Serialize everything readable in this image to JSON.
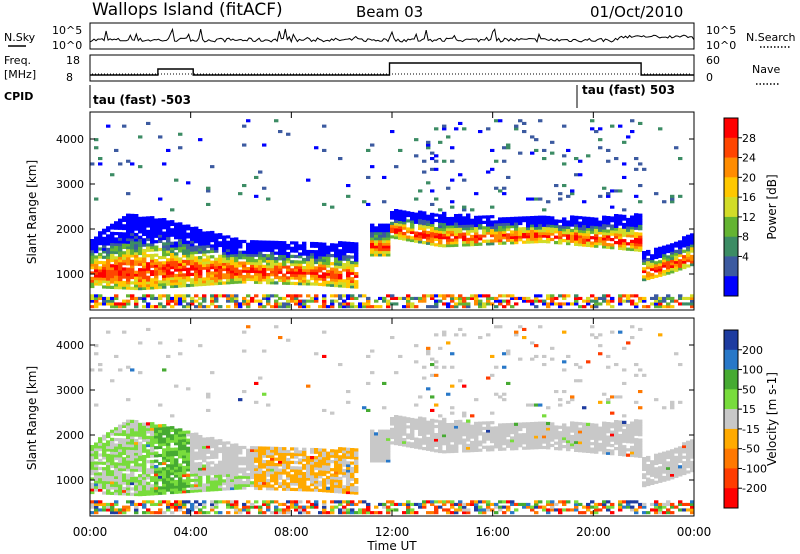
{
  "header": {
    "station": "Wallops Island (fitACF)",
    "beam": "Beam 03",
    "date": "01/Oct/2010"
  },
  "strips": {
    "nsky_label": "N.Sky",
    "nsky_ticks": [
      "10^5",
      "10^0"
    ],
    "nsearch_label": "N.Search",
    "nsearch_ticks": [
      "10^5",
      "10^0"
    ],
    "freq_label": "Freq.",
    "freq_unit": "[MHz]",
    "freq_ticks": [
      "18",
      "8"
    ],
    "nave_label": "Nave",
    "nave_ticks": [
      "60",
      "0"
    ],
    "cpid_label": "CPID",
    "cpid_left": "tau (fast) -503",
    "cpid_right": "tau (fast) 503"
  },
  "x_axis": {
    "label": "Time UT",
    "ticks": [
      "00:00",
      "04:00",
      "08:00",
      "12:00",
      "16:00",
      "20:00",
      "00:00"
    ]
  },
  "chart_data": [
    {
      "type": "heatmap",
      "quantity": "Power",
      "ylabel": "Slant Range [km]",
      "yticks": [
        1000,
        2000,
        3000,
        4000
      ],
      "ylim": [
        200,
        4600
      ],
      "xlim_hours": [
        0,
        24
      ],
      "colorbar": {
        "label": "Power [dB]",
        "ticks": [
          "28",
          "24",
          "20",
          "16",
          "12",
          "8",
          "4"
        ],
        "colors": [
          "#ff0000",
          "#ff4500",
          "#ff8c00",
          "#ffc800",
          "#d2dc28",
          "#64b432",
          "#3c8c64",
          "#3c5aa0",
          "#0000ff"
        ]
      }
    },
    {
      "type": "heatmap",
      "quantity": "Velocity",
      "ylabel": "Slant Range [km]",
      "yticks": [
        1000,
        2000,
        3000,
        4000
      ],
      "ylim": [
        200,
        4600
      ],
      "xlim_hours": [
        0,
        24
      ],
      "colorbar": {
        "label": "Velocity [m s-1]",
        "ticks": [
          "200",
          "100",
          "50",
          "15",
          "-15",
          "-50",
          "-100",
          "-200"
        ],
        "colors": [
          "#1e3ca0",
          "#2878c8",
          "#46aa32",
          "#78dc3c",
          "#c8c8c8",
          "#ffaa00",
          "#ff7800",
          "#ff3c00",
          "#ff0000"
        ]
      }
    }
  ]
}
